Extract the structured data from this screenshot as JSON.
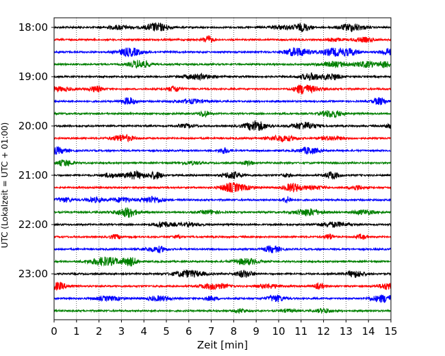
{
  "chart_data": {
    "type": "line",
    "title": "",
    "xlabel": "Zeit  [min]",
    "ylabel": "UTC (Lokalzeit = UTC + 01:00)",
    "xlim": [
      0,
      15
    ],
    "x_ticks": [
      "0",
      "1",
      "2",
      "3",
      "4",
      "5",
      "6",
      "7",
      "8",
      "9",
      "10",
      "11",
      "12",
      "13",
      "14",
      "15"
    ],
    "y_ticks": [
      {
        "label": "18:00",
        "hour": 18.0
      },
      {
        "label": "19:00",
        "hour": 19.0
      },
      {
        "label": "20:00",
        "hour": 20.0
      },
      {
        "label": "21:00",
        "hour": 21.0
      },
      {
        "label": "22:00",
        "hour": 22.0
      },
      {
        "label": "23:00",
        "hour": 23.0
      }
    ],
    "ylim_hours": [
      17.8,
      24.0
    ],
    "grid": "vertical dotted at each minute",
    "trace_interval_min": 15,
    "trace_start": "18:00",
    "trace_count": 24,
    "trace_colors": [
      "#000000",
      "#ff0000",
      "#0000ff",
      "#008000"
    ]
  }
}
